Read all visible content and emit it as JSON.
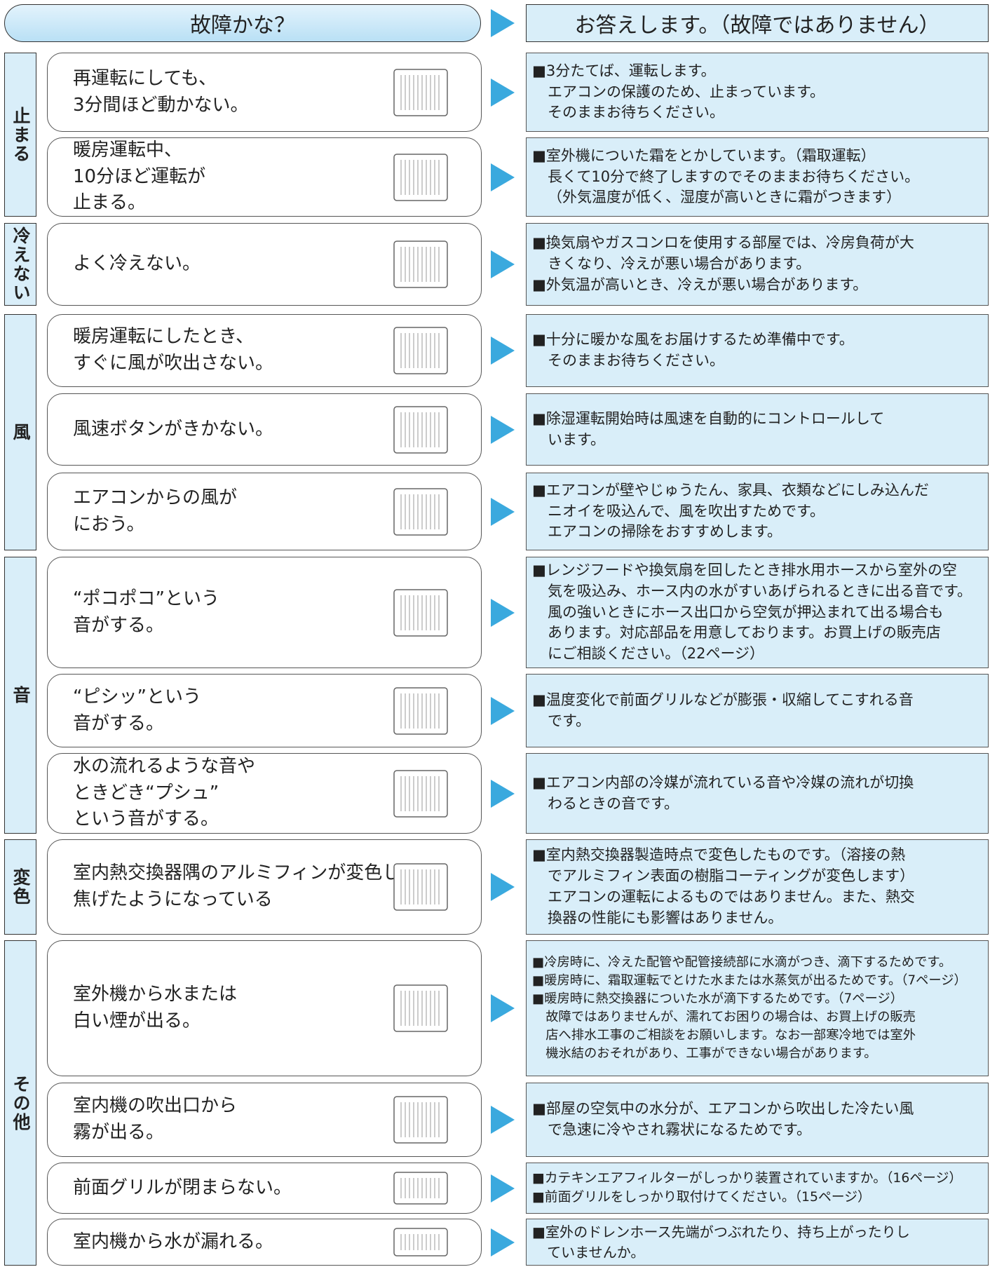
{
  "header": {
    "left": "故障かな？",
    "right": "お答えします。（故障ではありません）"
  },
  "groups": [
    {
      "label": "止まる",
      "rows": [
        {
          "question": [
            "再運転にしても、",
            "3分間ほど動かない。"
          ],
          "answer": [
            "■3分たてば、運転します。",
            "エアコンの保護のため、止まっています。",
            "そのままお待ちください。"
          ]
        },
        {
          "question": [
            "暖房運転中、",
            "10分ほど運転が",
            "止まる。"
          ],
          "answer": [
            "■室外機についた霜をとかしています。（霜取運転）",
            "長くて10分で終了しますのでそのままお待ちください。",
            "（外気温度が低く、湿度が高いときに霜がつきます）"
          ]
        }
      ]
    },
    {
      "label": "冷えない",
      "rows": [
        {
          "question": [
            "よく冷えない。"
          ],
          "answer": [
            "■換気扇やガスコンロを使用する部屋では、冷房負荷が大",
            "きくなり、冷えが悪い場合があります。",
            "■外気温が高いとき、冷えが悪い場合があります。"
          ]
        }
      ]
    },
    {
      "label": "風",
      "rows": [
        {
          "question": [
            "暖房運転にしたとき、",
            "すぐに風が吹出さない。"
          ],
          "answer": [
            "■十分に暖かな風をお届けするため準備中です。",
            "そのままお待ちください。"
          ]
        },
        {
          "question": [
            "風速ボタンがきかない。"
          ],
          "answer": [
            "■除湿運転開始時は風速を自動的にコントロールして",
            "います。"
          ]
        },
        {
          "question": [
            "エアコンからの風が",
            "におう。"
          ],
          "answer": [
            "■エアコンが壁やじゅうたん、家具、衣類などにしみ込んだ",
            "ニオイを吸込んで、風を吹出すためです。",
            "エアコンの掃除をおすすめします。"
          ]
        }
      ]
    },
    {
      "label": "音",
      "rows": [
        {
          "question": [
            "“ポコポコ”という",
            "音がする。"
          ],
          "answer": [
            "■レンジフードや換気扇を回したとき排水用ホースから室外の空",
            "気を吸込み、ホース内の水がすいあげられるときに出る音です。",
            "風の強いときにホース出口から空気が押込まれて出る場合も",
            "あります。対応部品を用意しております。お買上げの販売店",
            "にご相談ください。（22ページ）"
          ]
        },
        {
          "question": [
            "“ピシッ”という",
            "音がする。"
          ],
          "answer": [
            "■温度変化で前面グリルなどが膨張・収縮してこすれる音",
            "です。"
          ]
        },
        {
          "question": [
            "水の流れるような音や",
            "ときどき“プシュ”",
            "という音がする。"
          ],
          "answer": [
            "■エアコン内部の冷媒が流れている音や冷媒の流れが切換",
            "わるときの音です。"
          ]
        }
      ]
    },
    {
      "label": "変色",
      "rows": [
        {
          "question": [
            "室内熱交換器隅のアルミフィンが変色して",
            "焦げたようになっている"
          ],
          "answer": [
            "■室内熱交換器製造時点で変色したものです。（溶接の熱",
            "でアルミフィン表面の樹脂コーティングが変色します）",
            "エアコンの運転によるものではありません。また、熱交",
            "換器の性能にも影響はありません。"
          ]
        }
      ]
    },
    {
      "label": "その他",
      "rows": [
        {
          "question": [
            "室外機から水または",
            "白い煙が出る。"
          ],
          "answer": [
            "■冷房時に、冷えた配管や配管接続部に水滴がつき、滴下するためです。",
            "■暖房時に、霜取運転でとけた水または水蒸気が出るためです。（7ページ）",
            "■暖房時に熱交換器についた水が滴下するためです。（7ページ）",
            "故障ではありませんが、濡れてお困りの場合は、お買上げの販売",
            "店へ排水工事のご相談をお願いします。なお一部寒冷地では室外",
            "機氷結のおそれがあり、工事ができない場合があります。"
          ]
        },
        {
          "question": [
            "室内機の吹出口から",
            "霧が出る。"
          ],
          "answer": [
            "■部屋の空気中の水分が、エアコンから吹出した冷たい風",
            "で急速に冷やされ霧状になるためです。"
          ]
        },
        {
          "question": [
            "前面グリルが閉まらない。"
          ],
          "answer": [
            "■カテキンエアフィルターがしっかり装置されていますか。（16ページ）",
            "■前面グリルをしっかり取付けてください。（15ページ）"
          ]
        },
        {
          "question": [
            "室内機から水が漏れる。"
          ],
          "answer": [
            "■室外のドレンホース先端がつぶれたり、持ち上がったりし",
            "ていませんか。"
          ]
        }
      ]
    }
  ]
}
